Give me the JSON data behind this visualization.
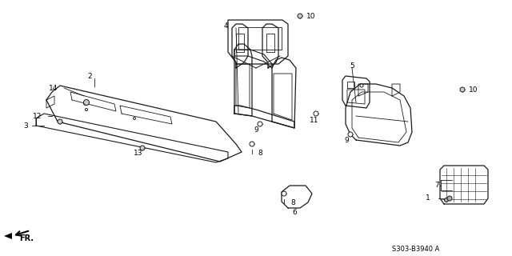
{
  "diagram_code": "S303-B3940 A",
  "bg": "#ffffff",
  "lc": "#1a1a1a",
  "fig_w": 6.4,
  "fig_h": 3.2,
  "dpi": 100
}
